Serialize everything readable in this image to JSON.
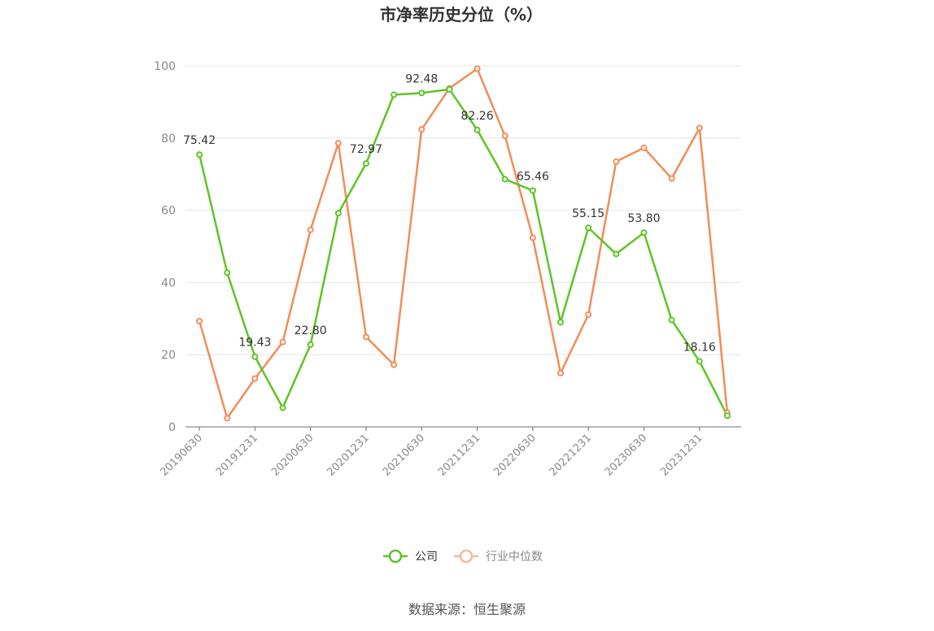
{
  "chart_data": {
    "type": "line",
    "title": "市净率历史分位（%）",
    "ylim": [
      0,
      100
    ],
    "y_ticks": [
      0,
      20,
      40,
      60,
      80,
      100
    ],
    "grid": true,
    "legend_placement": "bottom",
    "x": [
      "20190630",
      "20190930",
      "20191231",
      "20200331",
      "20200630",
      "20200930",
      "20201231",
      "20210331",
      "20210630",
      "20210930",
      "20211231",
      "20220331",
      "20220630",
      "20220930",
      "20221231",
      "20230331",
      "20230630",
      "20230930",
      "20231231",
      "20240331"
    ],
    "x_tick_labels": [
      "20190630",
      "20191231",
      "20200630",
      "20201231",
      "20210630",
      "20211231",
      "20220630",
      "20221231",
      "20230630",
      "20231231"
    ],
    "series": [
      {
        "name": "公司",
        "color": "#5dc524",
        "values": [
          75.42,
          42.7,
          19.43,
          5.3,
          22.8,
          59.2,
          72.97,
          92.0,
          92.48,
          93.5,
          82.26,
          68.6,
          65.46,
          29.0,
          55.15,
          47.9,
          53.8,
          29.6,
          18.16,
          3.1
        ],
        "labels": [
          {
            "index": 0,
            "text": "75.42"
          },
          {
            "index": 2,
            "text": "19.43"
          },
          {
            "index": 4,
            "text": "22.80"
          },
          {
            "index": 6,
            "text": "72.97"
          },
          {
            "index": 8,
            "text": "92.48"
          },
          {
            "index": 10,
            "text": "82.26"
          },
          {
            "index": 12,
            "text": "65.46"
          },
          {
            "index": 14,
            "text": "55.15"
          },
          {
            "index": 16,
            "text": "53.80"
          },
          {
            "index": 18,
            "text": "18.16"
          }
        ]
      },
      {
        "name": "行业中位数",
        "color": "#f28c5a",
        "legend_color": "#f6b89b",
        "values": [
          29.3,
          2.4,
          13.4,
          23.5,
          54.6,
          78.6,
          24.9,
          17.2,
          82.4,
          93.8,
          99.2,
          80.6,
          52.4,
          14.9,
          31.1,
          73.5,
          77.3,
          68.8,
          82.8,
          3.9
        ]
      }
    ]
  },
  "source": "数据来源：恒生聚源"
}
